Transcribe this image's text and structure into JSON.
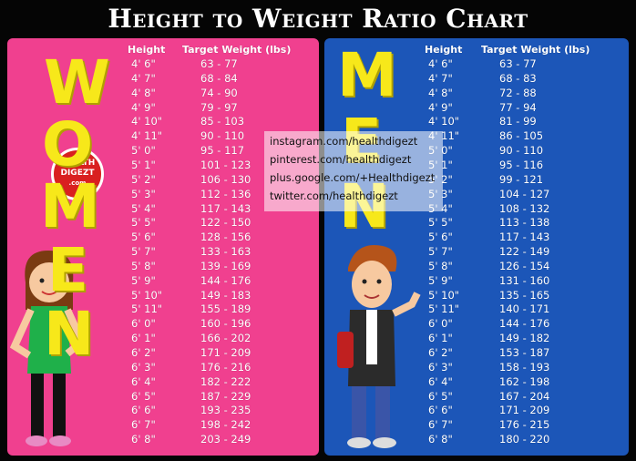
{
  "title": "Height to Weight Ratio Chart",
  "women": {
    "letters": [
      "W",
      "O",
      "M",
      "E",
      "N"
    ],
    "columns": [
      "Height",
      "Target Weight (lbs)"
    ],
    "rows": [
      [
        "4' 6\"",
        "63 - 77"
      ],
      [
        "4' 7\"",
        "68 - 84"
      ],
      [
        "4' 8\"",
        "74 - 90"
      ],
      [
        "4' 9\"",
        "79 - 97"
      ],
      [
        "4' 10\"",
        "85 - 103"
      ],
      [
        "4' 11\"",
        "90 - 110"
      ],
      [
        "5' 0\"",
        "95 - 117"
      ],
      [
        "5' 1\"",
        "101 - 123"
      ],
      [
        "5' 2\"",
        "106 - 130"
      ],
      [
        "5' 3\"",
        "112 - 136"
      ],
      [
        "5' 4\"",
        "117 - 143"
      ],
      [
        "5' 5\"",
        "122 - 150"
      ],
      [
        "5' 6\"",
        "128 - 156"
      ],
      [
        "5' 7\"",
        "133 - 163"
      ],
      [
        "5' 8\"",
        "139 - 169"
      ],
      [
        "5' 9\"",
        "144 - 176"
      ],
      [
        "5' 10\"",
        "149 - 183"
      ],
      [
        "5' 11\"",
        "155 - 189"
      ],
      [
        "6' 0\"",
        "160 - 196"
      ],
      [
        "6' 1\"",
        "166 - 202"
      ],
      [
        "6' 2\"",
        "171 - 209"
      ],
      [
        "6' 3\"",
        "176 - 216"
      ],
      [
        "6' 4\"",
        "182 - 222"
      ],
      [
        "6' 5\"",
        "187 - 229"
      ],
      [
        "6' 6\"",
        "193 - 235"
      ],
      [
        "6' 7\"",
        "198 - 242"
      ],
      [
        "6' 8\"",
        "203 - 249"
      ]
    ]
  },
  "men": {
    "letters": [
      "M",
      "E",
      "N"
    ],
    "columns": [
      "Height",
      "Target Weight (lbs)"
    ],
    "rows": [
      [
        "4' 6\"",
        "63 - 77"
      ],
      [
        "4' 7\"",
        "68 - 83"
      ],
      [
        "4' 8\"",
        "72 - 88"
      ],
      [
        "4' 9\"",
        "77 - 94"
      ],
      [
        "4' 10\"",
        "81 - 99"
      ],
      [
        "4' 11\"",
        "86 - 105"
      ],
      [
        "5' 0\"",
        "90 - 110"
      ],
      [
        "5' 1\"",
        "95 - 116"
      ],
      [
        "5' 2\"",
        "99 - 121"
      ],
      [
        "5' 3\"",
        "104 - 127"
      ],
      [
        "5' 4\"",
        "108 - 132"
      ],
      [
        "5' 5\"",
        "113 - 138"
      ],
      [
        "5' 6\"",
        "117 - 143"
      ],
      [
        "5' 7\"",
        "122 - 149"
      ],
      [
        "5' 8\"",
        "126 - 154"
      ],
      [
        "5' 9\"",
        "131 - 160"
      ],
      [
        "5' 10\"",
        "135 - 165"
      ],
      [
        "5' 11\"",
        "140 - 171"
      ],
      [
        "6' 0\"",
        "144 - 176"
      ],
      [
        "6' 1\"",
        "149 - 182"
      ],
      [
        "6' 2\"",
        "153 - 187"
      ],
      [
        "6' 3\"",
        "158 - 193"
      ],
      [
        "6' 4\"",
        "162 - 198"
      ],
      [
        "6' 5\"",
        "167 - 204"
      ],
      [
        "6' 6\"",
        "171 - 209"
      ],
      [
        "6' 7\"",
        "176 - 215"
      ],
      [
        "6' 8\"",
        "180 - 220"
      ]
    ]
  },
  "logo": [
    "HEALTH",
    "DIGEZT",
    ".com"
  ],
  "social": [
    "instagram.com/healthdigezt",
    "pinterest.com/healthdigezt",
    "plus.google.com/+Healthdigezt",
    "twitter.com/healthdigezt"
  ]
}
